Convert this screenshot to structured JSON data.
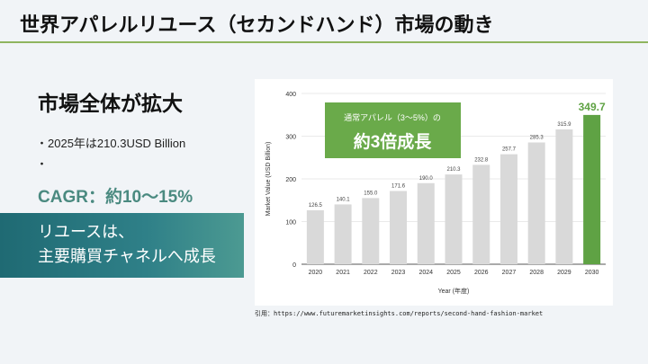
{
  "header": {
    "title": "世界アパレルリユース（セカンドハンド）市場の動き"
  },
  "left": {
    "heading": "市場全体が拡大",
    "bullet1": "・2025年は210.3USD Billion",
    "bullet2": "・",
    "cagr": "CAGR：約10〜15%",
    "band_line1": "リユースは、",
    "band_line2": "主要購買チャネルへ成長"
  },
  "callout": {
    "line1": "通常アパレル（3〜5%）の",
    "line2": "約3倍成長"
  },
  "citation": "引用：https://www.futuremarketinsights.com/reports/second-hand-fashion-market",
  "chart_data": {
    "type": "bar",
    "xlabel": "Year (年度)",
    "ylabel": "Market Value (USD Billion)",
    "ylim": [
      0,
      400
    ],
    "yticks": [
      0,
      100,
      200,
      300,
      400
    ],
    "grid": true,
    "categories": [
      "2020",
      "2021",
      "2022",
      "2023",
      "2024",
      "2025",
      "2026",
      "2027",
      "2028",
      "2029",
      "2030"
    ],
    "values": [
      126.5,
      140.1,
      155.0,
      171.6,
      190.0,
      210.3,
      232.8,
      257.7,
      285.3,
      315.9,
      349.7
    ],
    "labels": [
      "126.5",
      "140.1",
      "155.0",
      "171.6",
      "190.0",
      "210.3",
      "232.8",
      "257.7",
      "285.3",
      "315.9",
      "349.7"
    ],
    "colors": {
      "bar": "#d9d9d9",
      "highlight": "#5fa244",
      "callout": "#6aaa4a"
    }
  }
}
